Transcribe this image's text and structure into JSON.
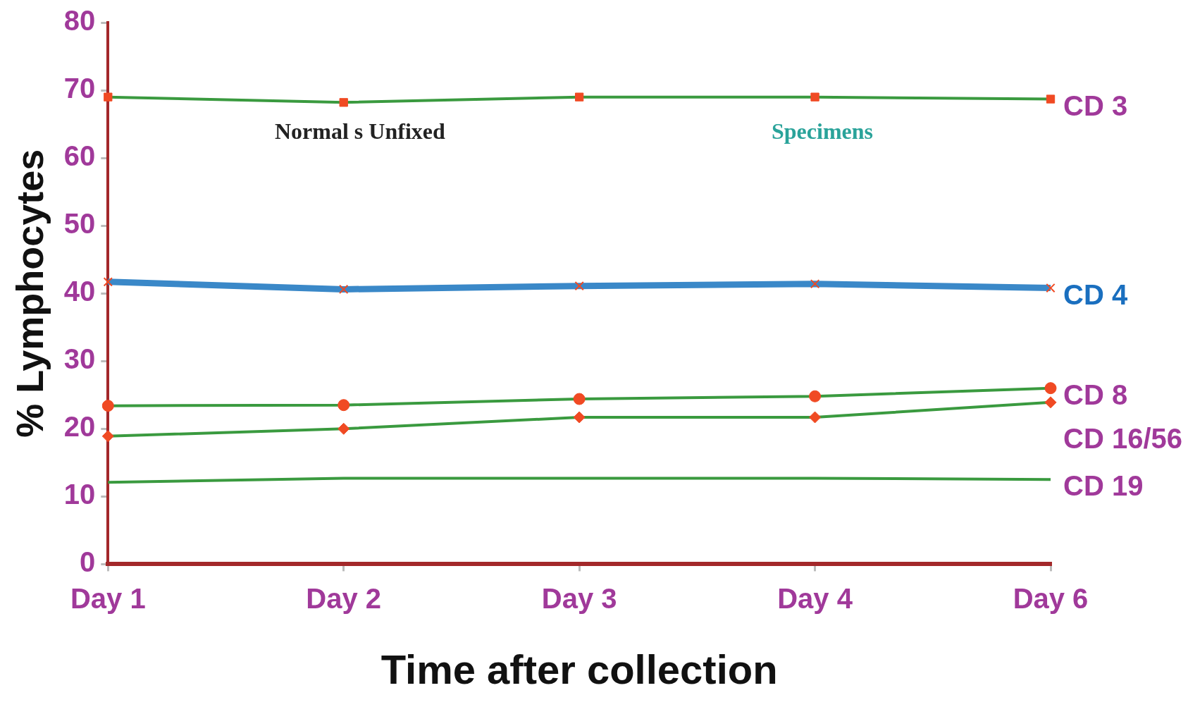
{
  "chart_data": {
    "type": "line",
    "xlabel": "Time after collection",
    "ylabel": "% Lymphocytes",
    "categories": [
      "Day 1",
      "Day 2",
      "Day 3",
      "Day 4",
      "Day 6"
    ],
    "ylim": [
      0,
      80
    ],
    "yticks": [
      0,
      10,
      20,
      30,
      40,
      50,
      60,
      70,
      80
    ],
    "grid": false,
    "legend": false,
    "annotations": [
      "Normal s Unfixed",
      "Specimens"
    ],
    "series": [
      {
        "name": "CD 3",
        "color": "#3a9a3f",
        "marker": "square",
        "values": [
          69.0,
          68.2,
          69.0,
          69.0,
          68.7
        ]
      },
      {
        "name": "CD 4",
        "color": "#3a88c8",
        "marker": "cross",
        "values": [
          41.7,
          40.6,
          41.1,
          41.4,
          40.8
        ]
      },
      {
        "name": "CD 8",
        "color": "#3a9a3f",
        "marker": "circle",
        "values": [
          23.4,
          23.5,
          24.4,
          24.8,
          26.0
        ]
      },
      {
        "name": "CD 16/56",
        "color": "#3a9a3f",
        "marker": "diamond",
        "values": [
          18.9,
          20.0,
          21.7,
          21.7,
          23.9
        ]
      },
      {
        "name": "CD 19",
        "color": "#3a9a3f",
        "marker": "none",
        "values": [
          12.1,
          12.7,
          12.7,
          12.7,
          12.5
        ]
      }
    ]
  }
}
